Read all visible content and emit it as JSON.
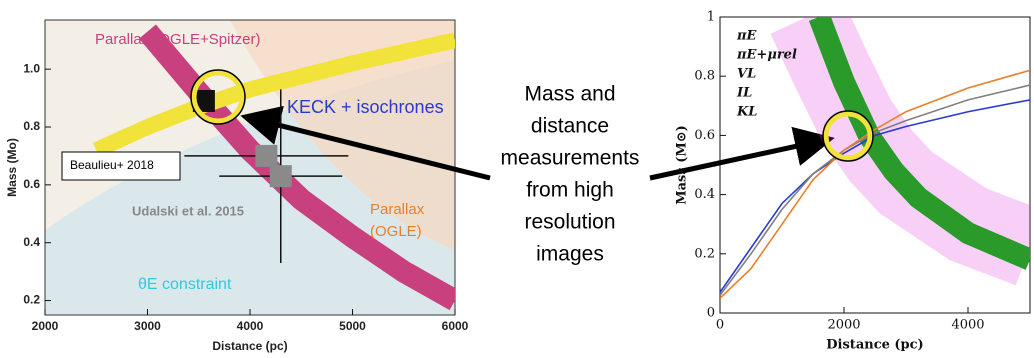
{
  "chart_data": [
    {
      "type": "line",
      "x_label": "Distance (pc)",
      "y_label": "Mass (Mo)",
      "xlim": [
        2000,
        6000
      ],
      "ylim": [
        0.15,
        1.17
      ],
      "xticks": [
        2000,
        3000,
        4000,
        5000,
        6000
      ],
      "yticks": [
        0.2,
        0.4,
        0.6,
        {
          "value": 0.8,
          "label": "0.8"
        },
        {
          "value": 1,
          "label": "1.0"
        }
      ],
      "series": [
        {
          "name": "Parallax (OGLE+Spitzer)",
          "color": "#c8407e",
          "x": [
            3000,
            3500,
            4000,
            4500,
            5000,
            5500,
            6000
          ],
          "values": [
            1.13,
            0.92,
            0.72,
            0.55,
            0.42,
            0.3,
            0.2
          ]
        },
        {
          "name": "KECK + isochrones",
          "color": "#f2e33a",
          "x": [
            2500,
            3000,
            3500,
            4000,
            5000,
            6000
          ],
          "values": [
            0.72,
            0.8,
            0.87,
            0.93,
            1.02,
            1.1
          ]
        }
      ],
      "points": {
        "x": [
          3550,
          4160,
          4300
        ],
        "values": [
          0.89,
          0.7,
          0.63
        ],
        "xerr": [
          null,
          800,
          600
        ],
        "yerr": [
          null,
          null,
          0.3
        ],
        "colors": [
          "#111111",
          "#8a8a8a",
          "#8a8a8a"
        ]
      },
      "annotations": [
        "Beaulieu+ 2018",
        "Udalski et al. 2015",
        "Parallax",
        "(OGLE)",
        "θE constraint"
      ]
    },
    {
      "type": "line",
      "x_label": "Distance (pc)",
      "y_label": "Mass (M⊙)",
      "xlim": [
        0,
        5000
      ],
      "ylim": [
        0,
        1
      ],
      "xticks": [
        0,
        2000,
        4000
      ],
      "yticks": [
        0,
        0.2,
        0.4,
        0.6,
        0.8,
        1
      ],
      "series": [
        {
          "name": "πE",
          "color": "#e040e0",
          "x": [
            1400,
            1800,
            2200,
            2600,
            3000,
            4000,
            5000
          ],
          "values": [
            1,
            0.82,
            0.65,
            0.53,
            0.44,
            0.3,
            0.22
          ]
        },
        {
          "name": "πE+μrel",
          "color": "#2a9a2a",
          "x": [
            1600,
            2000,
            2400,
            2800,
            3200,
            4000,
            5000
          ],
          "values": [
            1,
            0.78,
            0.6,
            0.48,
            0.39,
            0.27,
            0.18
          ]
        },
        {
          "name": "VL",
          "color": "#2a3ad0",
          "x": [
            0,
            500,
            1000,
            1500,
            2000,
            2500,
            3000,
            4000,
            5000
          ],
          "values": [
            0.07,
            0.22,
            0.37,
            0.47,
            0.54,
            0.6,
            0.63,
            0.68,
            0.72
          ]
        },
        {
          "name": "IL",
          "color": "#808080",
          "x": [
            0,
            500,
            1000,
            1500,
            2000,
            2500,
            3000,
            4000,
            5000
          ],
          "values": [
            0.06,
            0.2,
            0.35,
            0.47,
            0.55,
            0.61,
            0.65,
            0.72,
            0.77
          ]
        },
        {
          "name": "KL",
          "color": "#e8802a",
          "x": [
            0,
            500,
            1000,
            1500,
            2000,
            2500,
            3000,
            4000,
            5000
          ],
          "values": [
            0.05,
            0.15,
            0.3,
            0.45,
            0.55,
            0.62,
            0.68,
            0.76,
            0.82
          ]
        }
      ]
    }
  ],
  "callout_lines": [
    "Mass and",
    "distance",
    "measurements",
    "from high",
    "resolution",
    "images"
  ]
}
